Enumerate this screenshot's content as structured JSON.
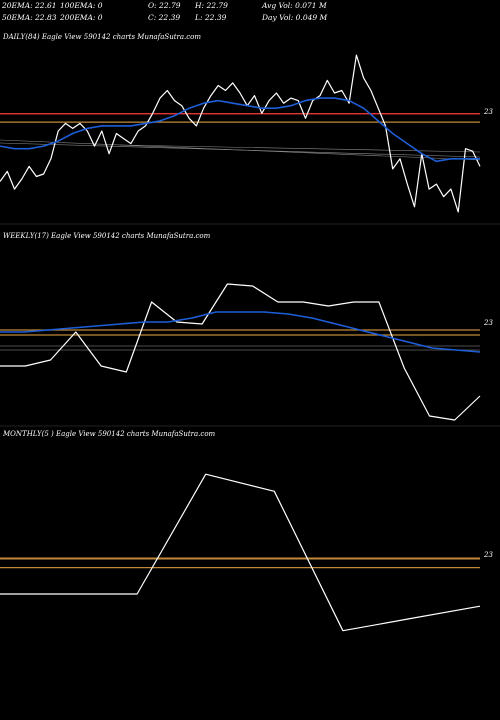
{
  "stats": {
    "row1": [
      "20EMA: 22.61",
      "100EMA: 0",
      "O: 22.79",
      "H: 22.79",
      "Avg Vol: 0.071 M"
    ],
    "row2": [
      "50EMA: 22.83",
      "200EMA: 0",
      "C: 22.39",
      "L: 22.39",
      "Day Vol: 0.049 M"
    ]
  },
  "colors": {
    "background": "#000000",
    "price": "#ffffff",
    "ema": "#1e5fd8",
    "level_red": "#ff3b3b",
    "level_gold": "#c08a3a"
  },
  "chart_data": [
    {
      "type": "line",
      "title": "DAILY(84) Eagle View 590142 charts MunafaSutra.com",
      "y_tick": "23",
      "series": [
        {
          "values": [
            20.6,
            21.0,
            20.3,
            20.7,
            21.2,
            20.8,
            20.9,
            21.5,
            22.6,
            22.9,
            22.7,
            22.9,
            22.6,
            22.0,
            22.6,
            21.7,
            22.5,
            22.3,
            22.1,
            22.6,
            22.8,
            23.3,
            23.9,
            24.2,
            23.8,
            23.6,
            23.1,
            22.8,
            23.5,
            24.0,
            24.4,
            24.2,
            24.5,
            24.1,
            23.6,
            24.0,
            23.3,
            23.8,
            24.1,
            23.7,
            23.9,
            23.8,
            23.1,
            23.8,
            24.0,
            24.6,
            24.1,
            24.2,
            23.7,
            25.6,
            24.7,
            24.2,
            23.5,
            22.8,
            21.1,
            21.5,
            20.5,
            19.6,
            21.7,
            20.3,
            20.5,
            20.0,
            20.3,
            19.4,
            21.9,
            21.8,
            21.2
          ]
        },
        {
          "values": [
            22.0,
            21.9,
            21.9,
            22.0,
            22.2,
            22.5,
            22.7,
            22.8,
            22.8,
            22.8,
            22.9,
            23.0,
            23.2,
            23.5,
            23.7,
            23.8,
            23.7,
            23.6,
            23.5,
            23.5,
            23.6,
            23.8,
            23.9,
            23.9,
            23.8,
            23.5,
            23.0,
            22.5,
            22.1,
            21.7,
            21.4,
            21.5,
            21.5,
            21.5
          ]
        }
      ],
      "levels": [
        22.95,
        23.28
      ]
    },
    {
      "type": "line",
      "title": "WEEKLY(17) Eagle View 590142 charts MunafaSutra.com",
      "y_tick": "23",
      "series": [
        {
          "values": [
            21.2,
            21.2,
            21.5,
            22.9,
            21.2,
            20.9,
            24.4,
            23.4,
            23.3,
            25.3,
            25.2,
            24.4,
            24.4,
            24.2,
            24.4,
            24.4,
            21.1,
            18.7,
            18.5,
            19.7
          ]
        },
        {
          "values": [
            22.9,
            22.9,
            23.0,
            23.1,
            23.2,
            23.3,
            23.4,
            23.4,
            23.6,
            23.9,
            23.9,
            23.9,
            23.8,
            23.6,
            23.3,
            23.0,
            22.7,
            22.4,
            22.1,
            22.0,
            21.9
          ]
        }
      ],
      "levels": [
        22.75,
        23.0
      ]
    },
    {
      "type": "line",
      "title": "MONTHLY(5          ) Eagle View 590142 charts MunafaSutra.com",
      "y_tick": "23",
      "series": [
        {
          "values": [
            21.7,
            21.7,
            21.7,
            26.6,
            25.9,
            20.2,
            20.7,
            21.2
          ]
        }
      ],
      "levels": [
        22.78,
        23.15
      ]
    }
  ]
}
